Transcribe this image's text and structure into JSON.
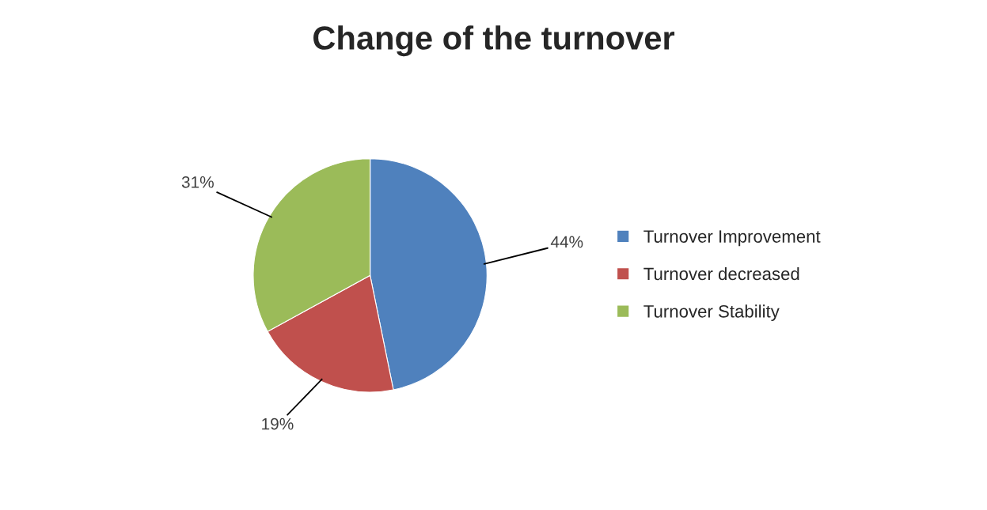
{
  "chart_data": {
    "type": "pie",
    "title": "Change of the turnover",
    "categories": [
      "Turnover Improvement",
      "Turnover decreased",
      "Turnover Stability"
    ],
    "values": [
      44,
      19,
      31
    ],
    "colors": [
      "#4f81bd",
      "#c0504d",
      "#9bbb59"
    ],
    "value_labels": [
      "44%",
      "19%",
      "31%"
    ],
    "legend": "right"
  }
}
